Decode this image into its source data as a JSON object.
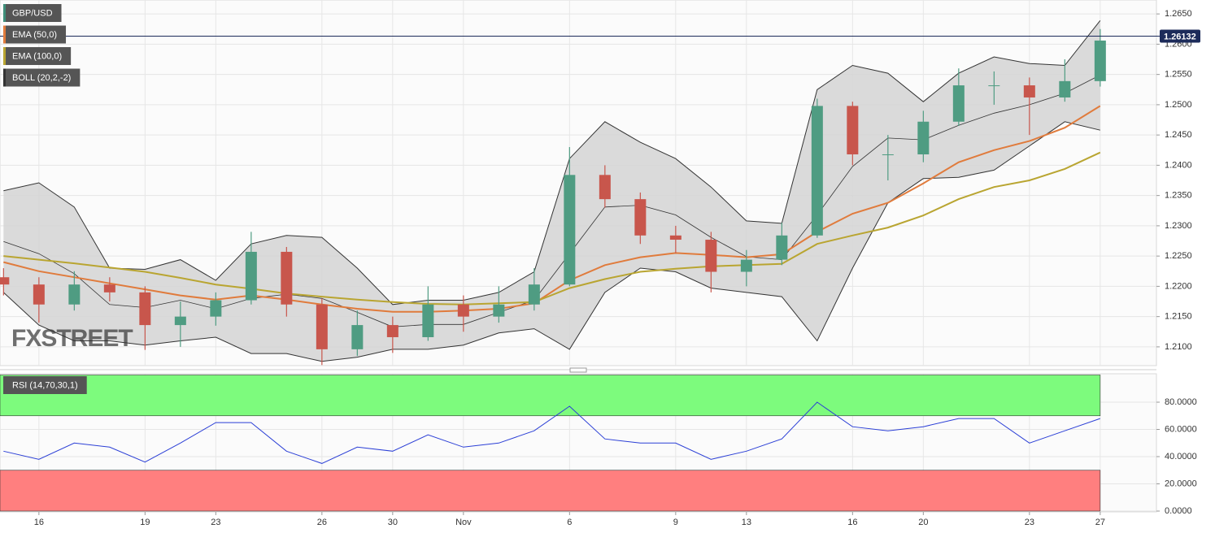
{
  "chart_data": [
    {
      "type": "candlestick",
      "title": "GBP/USD",
      "title_color": "#3f8f7a",
      "watermark": "FXSTREET",
      "x": [
        -1,
        0,
        1,
        2,
        3,
        4,
        5,
        6,
        7,
        8,
        9,
        10,
        11,
        12,
        13,
        14,
        15,
        16,
        17,
        18,
        19,
        20,
        21,
        22,
        23,
        24,
        25,
        26,
        27,
        28,
        29,
        30
      ],
      "open": [
        1.2215,
        1.2203,
        1.217,
        1.2203,
        1.219,
        1.2136,
        1.215,
        1.2177,
        1.2257,
        1.217,
        1.2096,
        1.2136,
        1.2116,
        1.217,
        1.215,
        1.217,
        1.2203,
        1.2384,
        1.2344,
        1.2284,
        1.2277,
        1.2224,
        1.2244,
        1.2284,
        1.2498,
        1.2418,
        1.2418,
        1.2472,
        1.2532,
        1.2532,
        1.2512,
        1.2539
      ],
      "high": [
        1.223,
        1.2215,
        1.2225,
        1.2215,
        1.22,
        1.2175,
        1.219,
        1.229,
        1.2265,
        1.218,
        1.216,
        1.215,
        1.22,
        1.2185,
        1.22,
        1.223,
        1.243,
        1.24,
        1.2355,
        1.23,
        1.229,
        1.226,
        1.2305,
        1.251,
        1.2505,
        1.245,
        1.249,
        1.256,
        1.2555,
        1.2545,
        1.2575,
        1.2625
      ],
      "low": [
        1.2185,
        1.214,
        1.216,
        1.2175,
        1.2095,
        1.21,
        1.2135,
        1.217,
        1.215,
        1.207,
        1.2085,
        1.209,
        1.211,
        1.2125,
        1.214,
        1.216,
        1.22,
        1.233,
        1.227,
        1.2255,
        1.219,
        1.22,
        1.2235,
        1.228,
        1.24,
        1.2375,
        1.2405,
        1.2465,
        1.25,
        1.245,
        1.2505,
        1.253
      ],
      "close": [
        1.2203,
        1.217,
        1.2203,
        1.219,
        1.2136,
        1.215,
        1.2177,
        1.2257,
        1.217,
        1.2096,
        1.2136,
        1.2116,
        1.217,
        1.215,
        1.217,
        1.2203,
        1.2384,
        1.2344,
        1.2284,
        1.2277,
        1.2224,
        1.2244,
        1.2284,
        1.2498,
        1.2418,
        1.2418,
        1.2472,
        1.2532,
        1.2532,
        1.2512,
        1.2539,
        1.2606
      ],
      "up_color": "#4f9c82",
      "down_color": "#c8564c",
      "series": [
        {
          "name": "EMA (50,0)",
          "color": "#e07b3c",
          "values": [
            1.224,
            1.2225,
            1.2215,
            1.2205,
            1.2195,
            1.2185,
            1.2178,
            1.2185,
            1.2178,
            1.217,
            1.2163,
            1.2158,
            1.2158,
            1.216,
            1.2163,
            1.2172,
            1.221,
            1.2235,
            1.2248,
            1.2255,
            1.2252,
            1.2248,
            1.2253,
            1.229,
            1.232,
            1.2338,
            1.237,
            1.2405,
            1.2425,
            1.244,
            1.2462,
            1.2498
          ]
        },
        {
          "name": "EMA (100,0)",
          "color": "#b9a531",
          "values": [
            1.225,
            1.2244,
            1.2238,
            1.2231,
            1.2224,
            1.2214,
            1.2203,
            1.2196,
            1.2188,
            1.2183,
            1.2178,
            1.2174,
            1.2171,
            1.217,
            1.2172,
            1.2174,
            1.2197,
            1.2212,
            1.2224,
            1.2229,
            1.2233,
            1.2235,
            1.2237,
            1.227,
            1.2284,
            1.2297,
            1.2317,
            1.2344,
            1.2364,
            1.2375,
            1.2394,
            1.2421
          ]
        }
      ],
      "bollinger": {
        "name": "BOLL (20,2,-2)",
        "color": "#333333",
        "fill": "#d4d4d4",
        "upper": [
          1.2358,
          1.2371,
          1.2331,
          1.223,
          1.2228,
          1.2244,
          1.221,
          1.227,
          1.2284,
          1.2281,
          1.223,
          1.217,
          1.2177,
          1.2177,
          1.219,
          1.2224,
          1.2411,
          1.2472,
          1.2438,
          1.2411,
          1.2364,
          1.2308,
          1.2304,
          1.2525,
          1.2565,
          1.2552,
          1.2505,
          1.2552,
          1.2579,
          1.2568,
          1.2565,
          1.2639
        ],
        "middle": [
          1.2274,
          1.2254,
          1.2221,
          1.217,
          1.2165,
          1.2177,
          1.2163,
          1.218,
          1.2187,
          1.218,
          1.2157,
          1.2133,
          1.2137,
          1.2137,
          1.2157,
          1.2177,
          1.2254,
          1.2331,
          1.2334,
          1.2318,
          1.2281,
          1.2249,
          1.2244,
          1.2318,
          1.2398,
          1.2445,
          1.2442,
          1.2466,
          1.2486,
          1.25,
          1.2519,
          1.2549
        ],
        "lower": [
          1.219,
          1.2136,
          1.211,
          1.211,
          1.2103,
          1.211,
          1.2116,
          1.2089,
          1.2089,
          1.2076,
          1.2083,
          1.2096,
          1.2096,
          1.2103,
          1.2123,
          1.213,
          1.2096,
          1.219,
          1.223,
          1.2224,
          1.2197,
          1.219,
          1.2183,
          1.211,
          1.223,
          1.2338,
          1.2378,
          1.238,
          1.2392,
          1.2432,
          1.2472,
          1.2458
        ]
      },
      "last_price": 1.26132,
      "last_price_color": "#1c2b5a",
      "xlim": [
        -1.1,
        31.59
      ],
      "ylim": [
        1.2069,
        1.2673
      ],
      "yticks": [
        {
          "value": 1.21,
          "label": "1.2100"
        },
        {
          "value": 1.215,
          "label": "1.2150"
        },
        {
          "value": 1.22,
          "label": "1.2200"
        },
        {
          "value": 1.225,
          "label": "1.2250"
        },
        {
          "value": 1.23,
          "label": "1.2300"
        },
        {
          "value": 1.235,
          "label": "1.2350"
        },
        {
          "value": 1.24,
          "label": "1.2400"
        },
        {
          "value": 1.245,
          "label": "1.2450"
        },
        {
          "value": 1.25,
          "label": "1.2500"
        },
        {
          "value": 1.255,
          "label": "1.2550"
        },
        {
          "value": 1.26,
          "label": "1.2600"
        },
        {
          "value": 1.265,
          "label": "1.2650"
        }
      ],
      "grid": true
    },
    {
      "type": "line",
      "title": "RSI (14,70,30,1)",
      "x": [
        -1,
        0,
        1,
        2,
        3,
        4,
        5,
        6,
        7,
        8,
        9,
        10,
        11,
        12,
        13,
        14,
        15,
        16,
        17,
        18,
        19,
        20,
        21,
        22,
        23,
        24,
        25,
        26,
        27,
        28,
        29,
        30
      ],
      "series": [
        {
          "color": "#2b3fd6",
          "values": [
            44,
            38,
            50,
            47,
            36,
            50,
            65,
            65,
            44,
            35,
            47,
            44,
            56,
            47,
            50,
            59,
            77,
            53,
            50,
            50,
            38,
            44,
            53,
            80,
            62,
            59,
            62,
            68,
            68,
            50,
            59,
            68
          ]
        }
      ],
      "zones": [
        {
          "from": 70,
          "to": 100,
          "color": "#7dfb7d"
        },
        {
          "from": 0,
          "to": 30,
          "color": "#ff7f7f"
        }
      ],
      "xlim": [
        -1.1,
        31.59
      ],
      "ylim": [
        -0.6,
        100.9
      ],
      "yticks": [
        {
          "value": 0,
          "label": "0.0000"
        },
        {
          "value": 20,
          "label": "20.0000"
        },
        {
          "value": 40,
          "label": "40.0000"
        },
        {
          "value": 60,
          "label": "60.0000"
        },
        {
          "value": 80,
          "label": "80.0000"
        }
      ],
      "xticks": [
        {
          "value": 0,
          "label": "16"
        },
        {
          "value": 3,
          "label": "19"
        },
        {
          "value": 5,
          "label": "23"
        },
        {
          "value": 8,
          "label": "26"
        },
        {
          "value": 10,
          "label": "30"
        },
        {
          "value": 12,
          "label": "Nov"
        },
        {
          "value": 15,
          "label": "6"
        },
        {
          "value": 18,
          "label": "9"
        },
        {
          "value": 20,
          "label": "13"
        },
        {
          "value": 23,
          "label": "16"
        },
        {
          "value": 25,
          "label": "20"
        },
        {
          "value": 28,
          "label": "23"
        },
        {
          "value": 30,
          "label": "27"
        }
      ],
      "grid": true
    }
  ]
}
